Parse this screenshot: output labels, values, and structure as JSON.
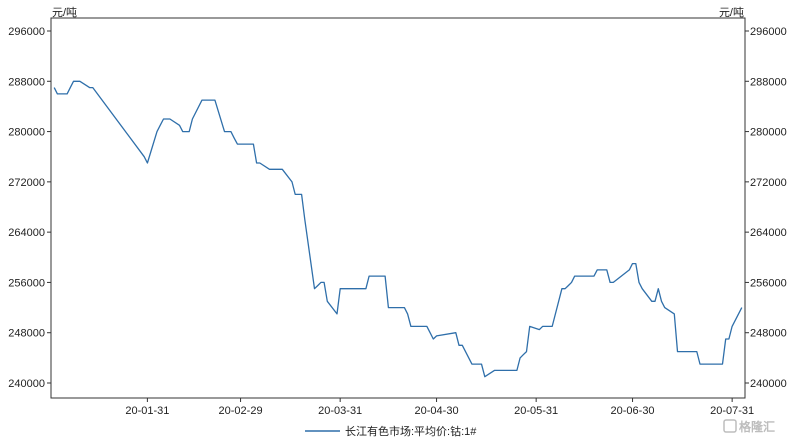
{
  "chart_data": {
    "type": "line",
    "title": "",
    "y_unit_left": "元/吨",
    "y_unit_right": "元/吨",
    "ylim": [
      240000,
      296000
    ],
    "y_ticks": [
      240000,
      248000,
      256000,
      264000,
      272000,
      280000,
      288000,
      296000
    ],
    "y_tick_labels": [
      "240000",
      "248000",
      "256000",
      "264000",
      "272000",
      "280000",
      "288000",
      "296000"
    ],
    "xlim": [
      "2020-01-01",
      "2020-08-04"
    ],
    "x_ticks": [
      "2020-01-31",
      "2020-02-29",
      "2020-03-31",
      "2020-04-30",
      "2020-05-31",
      "2020-06-30",
      "2020-07-31"
    ],
    "x_tick_labels": [
      "20-01-31",
      "20-02-29",
      "20-03-31",
      "20-04-30",
      "20-05-31",
      "20-06-30",
      "20-07-31"
    ],
    "grid": false,
    "legend_position": "bottom-center",
    "series": [
      {
        "name": "长江有色市场:平均价:钴:1#",
        "color": "#2f6faa",
        "points": [
          [
            "2020-01-02",
            287000
          ],
          [
            "2020-01-03",
            286000
          ],
          [
            "2020-01-06",
            286000
          ],
          [
            "2020-01-07",
            287000
          ],
          [
            "2020-01-08",
            288000
          ],
          [
            "2020-01-09",
            288000
          ],
          [
            "2020-01-10",
            288000
          ],
          [
            "2020-01-13",
            287000
          ],
          [
            "2020-01-14",
            287000
          ],
          [
            "2020-01-30",
            276000
          ],
          [
            "2020-01-31",
            275000
          ],
          [
            "2020-02-03",
            280000
          ],
          [
            "2020-02-04",
            281000
          ],
          [
            "2020-02-05",
            282000
          ],
          [
            "2020-02-06",
            282000
          ],
          [
            "2020-02-07",
            282000
          ],
          [
            "2020-02-10",
            281000
          ],
          [
            "2020-02-11",
            280000
          ],
          [
            "2020-02-12",
            280000
          ],
          [
            "2020-02-13",
            280000
          ],
          [
            "2020-02-14",
            282000
          ],
          [
            "2020-02-17",
            285000
          ],
          [
            "2020-02-18",
            285000
          ],
          [
            "2020-02-19",
            285000
          ],
          [
            "2020-02-20",
            285000
          ],
          [
            "2020-02-21",
            285000
          ],
          [
            "2020-02-24",
            280000
          ],
          [
            "2020-02-25",
            280000
          ],
          [
            "2020-02-26",
            280000
          ],
          [
            "2020-02-27",
            279000
          ],
          [
            "2020-02-28",
            278000
          ],
          [
            "2020-03-02",
            278000
          ],
          [
            "2020-03-03",
            278000
          ],
          [
            "2020-03-04",
            278000
          ],
          [
            "2020-03-05",
            275000
          ],
          [
            "2020-03-06",
            275000
          ],
          [
            "2020-03-09",
            274000
          ],
          [
            "2020-03-10",
            274000
          ],
          [
            "2020-03-11",
            274000
          ],
          [
            "2020-03-12",
            274000
          ],
          [
            "2020-03-13",
            274000
          ],
          [
            "2020-03-16",
            272000
          ],
          [
            "2020-03-17",
            270000
          ],
          [
            "2020-03-18",
            270000
          ],
          [
            "2020-03-19",
            270000
          ],
          [
            "2020-03-20",
            266000
          ],
          [
            "2020-03-23",
            255000
          ],
          [
            "2020-03-24",
            255500
          ],
          [
            "2020-03-25",
            256000
          ],
          [
            "2020-03-26",
            256000
          ],
          [
            "2020-03-27",
            253000
          ],
          [
            "2020-03-30",
            251000
          ],
          [
            "2020-03-31",
            255000
          ],
          [
            "2020-04-01",
            255000
          ],
          [
            "2020-04-02",
            255000
          ],
          [
            "2020-04-03",
            255000
          ],
          [
            "2020-04-07",
            255000
          ],
          [
            "2020-04-08",
            255000
          ],
          [
            "2020-04-09",
            257000
          ],
          [
            "2020-04-10",
            257000
          ],
          [
            "2020-04-13",
            257000
          ],
          [
            "2020-04-14",
            257000
          ],
          [
            "2020-04-15",
            252000
          ],
          [
            "2020-04-16",
            252000
          ],
          [
            "2020-04-17",
            252000
          ],
          [
            "2020-04-20",
            252000
          ],
          [
            "2020-04-21",
            251000
          ],
          [
            "2020-04-22",
            249000
          ],
          [
            "2020-04-23",
            249000
          ],
          [
            "2020-04-24",
            249000
          ],
          [
            "2020-04-27",
            249000
          ],
          [
            "2020-04-28",
            248000
          ],
          [
            "2020-04-29",
            247000
          ],
          [
            "2020-04-30",
            247500
          ],
          [
            "2020-05-06",
            248000
          ],
          [
            "2020-05-07",
            246000
          ],
          [
            "2020-05-08",
            246000
          ],
          [
            "2020-05-11",
            243000
          ],
          [
            "2020-05-12",
            243000
          ],
          [
            "2020-05-13",
            243000
          ],
          [
            "2020-05-14",
            243000
          ],
          [
            "2020-05-15",
            241000
          ],
          [
            "2020-05-18",
            242000
          ],
          [
            "2020-05-19",
            242000
          ],
          [
            "2020-05-20",
            242000
          ],
          [
            "2020-05-21",
            242000
          ],
          [
            "2020-05-22",
            242000
          ],
          [
            "2020-05-25",
            242000
          ],
          [
            "2020-05-26",
            244000
          ],
          [
            "2020-05-27",
            244500
          ],
          [
            "2020-05-28",
            245000
          ],
          [
            "2020-05-29",
            249000
          ],
          [
            "2020-06-01",
            248500
          ],
          [
            "2020-06-02",
            249000
          ],
          [
            "2020-06-03",
            249000
          ],
          [
            "2020-06-04",
            249000
          ],
          [
            "2020-06-05",
            249000
          ],
          [
            "2020-06-08",
            255000
          ],
          [
            "2020-06-09",
            255000
          ],
          [
            "2020-06-10",
            255500
          ],
          [
            "2020-06-11",
            256000
          ],
          [
            "2020-06-12",
            257000
          ],
          [
            "2020-06-15",
            257000
          ],
          [
            "2020-06-16",
            257000
          ],
          [
            "2020-06-17",
            257000
          ],
          [
            "2020-06-18",
            257000
          ],
          [
            "2020-06-19",
            258000
          ],
          [
            "2020-06-22",
            258000
          ],
          [
            "2020-06-23",
            256000
          ],
          [
            "2020-06-24",
            256000
          ],
          [
            "2020-06-29",
            258000
          ],
          [
            "2020-06-30",
            259000
          ],
          [
            "2020-07-01",
            259000
          ],
          [
            "2020-07-02",
            256000
          ],
          [
            "2020-07-03",
            255000
          ],
          [
            "2020-07-06",
            253000
          ],
          [
            "2020-07-07",
            253000
          ],
          [
            "2020-07-08",
            255000
          ],
          [
            "2020-07-09",
            253000
          ],
          [
            "2020-07-10",
            252000
          ],
          [
            "2020-07-13",
            251000
          ],
          [
            "2020-07-14",
            245000
          ],
          [
            "2020-07-15",
            245000
          ],
          [
            "2020-07-16",
            245000
          ],
          [
            "2020-07-17",
            245000
          ],
          [
            "2020-07-20",
            245000
          ],
          [
            "2020-07-21",
            243000
          ],
          [
            "2020-07-22",
            243000
          ],
          [
            "2020-07-23",
            243000
          ],
          [
            "2020-07-24",
            243000
          ],
          [
            "2020-07-27",
            243000
          ],
          [
            "2020-07-28",
            243000
          ],
          [
            "2020-07-29",
            247000
          ],
          [
            "2020-07-30",
            247000
          ],
          [
            "2020-07-31",
            249000
          ],
          [
            "2020-08-03",
            252000
          ]
        ]
      }
    ]
  },
  "watermark": {
    "text": "格隆汇"
  }
}
